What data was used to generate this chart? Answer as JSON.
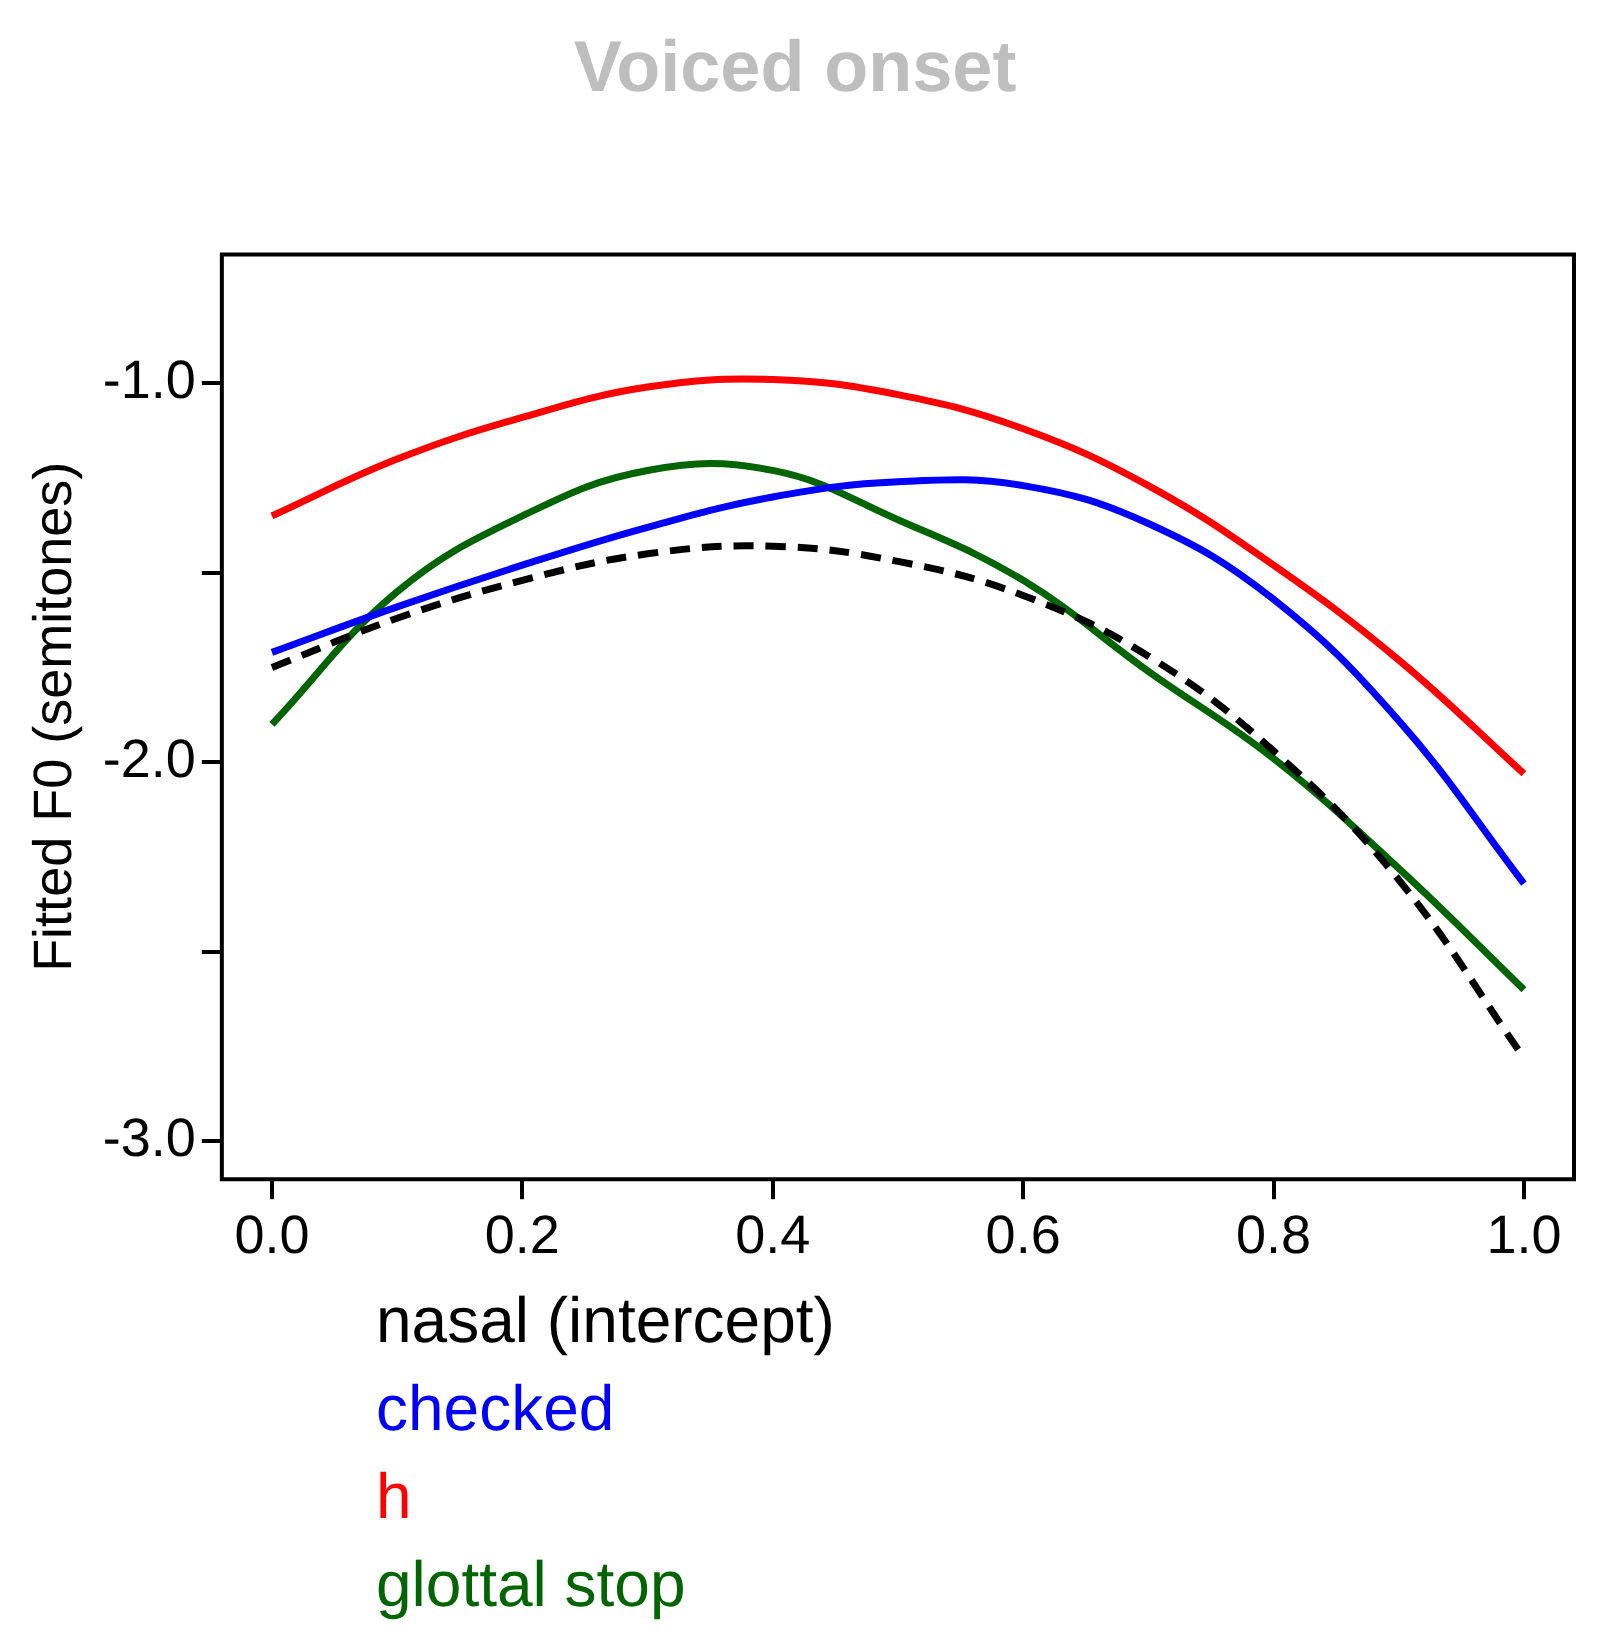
{
  "chart_data": {
    "type": "line",
    "title": "Voiced onset",
    "ylabel": "Fitted F0 (semitones)",
    "x": [
      0,
      0.1,
      0.2,
      0.3,
      0.4,
      0.5,
      0.6,
      0.7,
      0.8,
      0.9,
      1.0
    ],
    "series": [
      {
        "name": "nasal (intercept)",
        "color": "#000000",
        "line_style": "dashed",
        "values": [
          -1.75,
          -1.62,
          -1.52,
          -1.45,
          -1.43,
          -1.47,
          -1.56,
          -1.72,
          -1.97,
          -2.31,
          -2.78
        ]
      },
      {
        "name": "checked",
        "color": "#0000ff",
        "values": [
          -1.71,
          -1.59,
          -1.48,
          -1.38,
          -1.3,
          -1.26,
          -1.27,
          -1.37,
          -1.57,
          -1.89,
          -2.32
        ]
      },
      {
        "name": "h",
        "color": "#ff0000",
        "values": [
          -1.35,
          -1.2,
          -1.09,
          -1.01,
          -0.99,
          -1.03,
          -1.12,
          -1.27,
          -1.48,
          -1.73,
          -2.03
        ]
      },
      {
        "name": "glottal stop",
        "color": "#006400",
        "values": [
          -1.9,
          -1.55,
          -1.35,
          -1.23,
          -1.23,
          -1.36,
          -1.52,
          -1.76,
          -1.99,
          -2.28,
          -2.6
        ]
      }
    ],
    "xlim": [
      -0.04,
      1.04
    ],
    "xticks": [
      {
        "value": 0,
        "label": "0.0"
      },
      {
        "value": 0.2,
        "label": "0.2"
      },
      {
        "value": 0.4,
        "label": "0.4"
      },
      {
        "value": 0.6,
        "label": "0.6"
      },
      {
        "value": 0.8,
        "label": "0.8"
      },
      {
        "value": 1.0,
        "label": "1.0"
      }
    ],
    "ylim": [
      -3.1,
      -0.66
    ],
    "yticks": [
      {
        "value": -3,
        "label": "-3.0"
      },
      {
        "value": -2.5,
        "label": null
      },
      {
        "value": -2,
        "label": "-2.0"
      },
      {
        "value": -1.5,
        "label": null
      },
      {
        "value": -1,
        "label": "-1.0"
      }
    ],
    "legend": "bottom left",
    "marker": "none",
    "line_style": "solid"
  }
}
